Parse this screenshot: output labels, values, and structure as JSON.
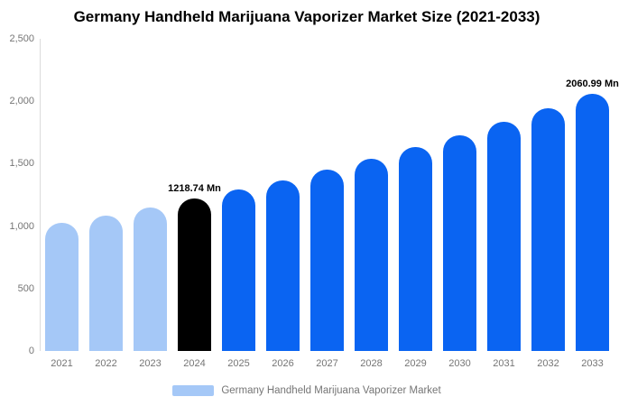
{
  "chart_data": {
    "type": "bar",
    "title": "Germany Handheld Marijuana Vaporizer Market Size (2021-2033)",
    "unit": "Mn",
    "categories": [
      "2021",
      "2022",
      "2023",
      "2024",
      "2025",
      "2026",
      "2027",
      "2028",
      "2029",
      "2030",
      "2031",
      "2032",
      "2033"
    ],
    "values": [
      1023,
      1085,
      1150,
      1218.74,
      1292,
      1369,
      1452,
      1539,
      1631,
      1729,
      1833,
      1942,
      2060.99
    ],
    "bar_colors": [
      "#A5C8F7",
      "#A5C8F7",
      "#A5C8F7",
      "#000000",
      "#0A64F2",
      "#0A64F2",
      "#0A64F2",
      "#0A64F2",
      "#0A64F2",
      "#0A64F2",
      "#0A64F2",
      "#0A64F2",
      "#0A64F2"
    ],
    "ylim": [
      0,
      2500
    ],
    "yticks": [
      {
        "value": 0,
        "label": "0"
      },
      {
        "value": 500,
        "label": "500"
      },
      {
        "value": 1000,
        "label": "1,000"
      },
      {
        "value": 1500,
        "label": "1,500"
      },
      {
        "value": 2000,
        "label": "2,000"
      },
      {
        "value": 2500,
        "label": "2,500"
      }
    ],
    "annotations": [
      {
        "index": 3,
        "text": "1218.74 Mn"
      },
      {
        "index": 12,
        "text": "2060.99 Mn"
      }
    ],
    "grid": "off",
    "legend_position": "bottom",
    "legend": {
      "label": "Germany Handheld Marijuana Vaporizer Market",
      "swatch_color": "#A5C8F7"
    },
    "colors": {
      "axis_line": "#dbdbdb",
      "tick_text": "#757575",
      "title_text": "#000000"
    }
  }
}
